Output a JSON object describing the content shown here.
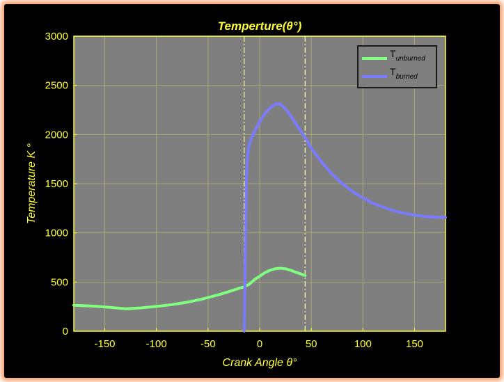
{
  "chart_data": {
    "type": "line",
    "title": "Temperture(θ°)",
    "xlabel": "Crank Angle θ°",
    "ylabel": "Temperature  K °",
    "xlim": [
      -180,
      180
    ],
    "ylim": [
      0,
      3000
    ],
    "xticks": [
      "-150",
      "-100",
      "-50",
      "0",
      "50",
      "100",
      "150"
    ],
    "yticks": [
      "0",
      "500",
      "1000",
      "1500",
      "2000",
      "2500",
      "3000"
    ],
    "grid": true,
    "legend_position": "top-right",
    "vertical_lines": [
      -15,
      44
    ],
    "series": [
      {
        "name_main": "T",
        "name_sub": "unburned",
        "color": "#80ff80",
        "x": [
          -180,
          -160,
          -145,
          -130,
          -115,
          -100,
          -85,
          -70,
          -55,
          -40,
          -30,
          -20,
          -15,
          -10,
          -5,
          0,
          5,
          10,
          15,
          20,
          25,
          30,
          35,
          40,
          44
        ],
        "y": [
          263,
          255,
          243,
          228,
          237,
          252,
          270,
          295,
          328,
          370,
          402,
          436,
          452,
          478,
          525,
          560,
          595,
          620,
          635,
          640,
          635,
          620,
          600,
          582,
          565
        ]
      },
      {
        "name_main": "T",
        "name_sub": "burned",
        "color": "#7b7bff",
        "x": [
          -15,
          -14.5,
          -14,
          -13.5,
          -13,
          -12,
          -11,
          -10,
          -8,
          -5,
          0,
          5,
          10,
          15,
          20,
          25,
          30,
          35,
          40,
          44,
          50,
          60,
          70,
          80,
          90,
          100,
          110,
          120,
          130,
          140,
          150,
          160,
          170,
          180
        ],
        "y": [
          0,
          300,
          700,
          1100,
          1500,
          1750,
          1850,
          1900,
          1960,
          2030,
          2130,
          2210,
          2270,
          2310,
          2310,
          2260,
          2190,
          2110,
          2030,
          1970,
          1860,
          1720,
          1600,
          1500,
          1420,
          1355,
          1300,
          1260,
          1225,
          1200,
          1180,
          1167,
          1160,
          1157
        ]
      }
    ]
  }
}
